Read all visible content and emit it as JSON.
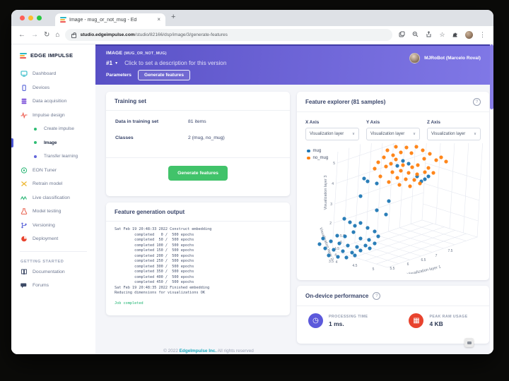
{
  "colors": {
    "header_purple_left": "#5850c5",
    "header_purple_right": "#8078e6",
    "green_button": "#41c36a",
    "plot_blue": "#1f77b4",
    "plot_orange": "#ff7f0e",
    "metric_purple": "#5c59db",
    "metric_red": "#e8432e",
    "footer_link_teal": "#17a8bc"
  },
  "icons": {
    "back": "←",
    "forward": "→",
    "reload": "↻",
    "home": "⌂",
    "star": "☆",
    "kebab": "⋮",
    "caret_down": "▾",
    "chevron_down": "∨",
    "clock": "◷",
    "ram": "▦",
    "close": "×",
    "plus": "+"
  },
  "browser": {
    "tab_title": "Image - mug_or_not_mug - Ed",
    "url_domain": "studio.edgeimpulse.com",
    "url_path": "/studio/82166/dsp/image/3/generate-features"
  },
  "sidebar": {
    "logo_text": "EDGE IMPULSE",
    "items": [
      "Dashboard",
      "Devices",
      "Data acquisition",
      "Impulse design",
      "Create impulse",
      "Image",
      "Transfer learning",
      "EON Tuner",
      "Retrain model",
      "Live classification",
      "Model testing",
      "Versioning",
      "Deployment"
    ],
    "section": "GETTING STARTED",
    "help_items": [
      "Documentation",
      "Forums"
    ]
  },
  "header": {
    "project_type": "IMAGE",
    "project_name": "(MUG_OR_NOT_MUG)",
    "version": "#1",
    "description_placeholder": "Click to set a description for this version",
    "tabs": [
      "Parameters",
      "Generate features"
    ],
    "user_name": "MJRoBot (Marcelo Roval)"
  },
  "training_set": {
    "title": "Training set",
    "rows": [
      {
        "label": "Data in training set",
        "value": "81 items"
      },
      {
        "label": "Classes",
        "value": "2 (mug, no_mug)"
      }
    ],
    "button": "Generate features"
  },
  "feature_output": {
    "title": "Feature generation output",
    "lines": [
      "Sat Feb 19 20:48:33 2022 Construct embedding",
      "         completed   0 /  500 epochs",
      "         completed  50 /  500 epochs",
      "         completed 100 /  500 epochs",
      "         completed 150 /  500 epochs",
      "         completed 200 /  500 epochs",
      "         completed 250 /  500 epochs",
      "         completed 300 /  500 epochs",
      "         completed 350 /  500 epochs",
      "         completed 400 /  500 epochs",
      "         completed 450 /  500 epochs",
      "Sat Feb 19 20:48:35 2022 Finished embedding",
      "Reducing dimensions for visualizations OK",
      ""
    ],
    "job_line": "Job completed"
  },
  "feature_explorer": {
    "title": "Feature explorer (81 samples)",
    "axes": [
      {
        "label": "X Axis",
        "value": "Visualization layer"
      },
      {
        "label": "Y Axis",
        "value": "Visualization layer"
      },
      {
        "label": "Z Axis",
        "value": "Visualization layer"
      }
    ]
  },
  "chart_data": {
    "type": "scatter",
    "subtype": "scatter3d",
    "title": "Feature explorer (81 samples)",
    "xlabel": "Visualization layer 1",
    "ylabel": "Visualization layer 2",
    "zlabel": "Visualization layer 3",
    "x_ticks": [
      "4",
      "4.5",
      "5",
      "5.5",
      "6",
      "6.5",
      "7",
      "7.5"
    ],
    "y_ticks": [
      "5.5",
      "5",
      "4.5",
      "4",
      "3.5"
    ],
    "z_ticks": [
      "5",
      "4",
      "3",
      "2"
    ],
    "legend": [
      "mug",
      "no_mug"
    ],
    "grid": true,
    "note": "point coords are plot-pixel positions in a 250x185 viewBox",
    "series": [
      {
        "name": "mug",
        "color": "#1f77b4",
        "points": [
          [
            122,
            32
          ],
          [
            138,
            29
          ],
          [
            150,
            47
          ],
          [
            156,
            54
          ],
          [
            161,
            51
          ],
          [
            166,
            47
          ],
          [
            130,
            25
          ],
          [
            75,
            50
          ],
          [
            80,
            54
          ],
          [
            93,
            57
          ],
          [
            70,
            75
          ],
          [
            110,
            82
          ],
          [
            93,
            95
          ],
          [
            106,
            101
          ],
          [
            47,
            107
          ],
          [
            55,
            112
          ],
          [
            62,
            117
          ],
          [
            70,
            113
          ],
          [
            80,
            120
          ],
          [
            90,
            125
          ],
          [
            60,
            126
          ],
          [
            48,
            132
          ],
          [
            37,
            131
          ],
          [
            70,
            135
          ],
          [
            82,
            137
          ],
          [
            95,
            132
          ],
          [
            28,
            139
          ],
          [
            40,
            142
          ],
          [
            52,
            145
          ],
          [
            65,
            147
          ],
          [
            77,
            145
          ],
          [
            90,
            142
          ],
          [
            20,
            149
          ],
          [
            32,
            151
          ],
          [
            45,
            153
          ],
          [
            58,
            155
          ],
          [
            70,
            152
          ],
          [
            83,
            149
          ],
          [
            25,
            159
          ],
          [
            38,
            161
          ],
          [
            50,
            162
          ],
          [
            62,
            159
          ],
          [
            12,
            143
          ],
          [
            17,
            135
          ]
        ]
      },
      {
        "name": "no_mug",
        "color": "#ff7f0e",
        "points": [
          [
            120,
            5
          ],
          [
            135,
            6
          ],
          [
            149,
            5
          ],
          [
            127,
            13
          ],
          [
            116,
            17
          ],
          [
            142,
            14
          ],
          [
            160,
            22
          ],
          [
            177,
            24
          ],
          [
            184,
            20
          ],
          [
            191,
            26
          ],
          [
            120,
            23
          ],
          [
            113,
            29
          ],
          [
            130,
            31
          ],
          [
            143,
            34
          ],
          [
            151,
            31
          ],
          [
            127,
            39
          ],
          [
            138,
            42
          ],
          [
            115,
            41
          ],
          [
            150,
            44
          ],
          [
            161,
            41
          ],
          [
            122,
            49
          ],
          [
            134,
            51
          ],
          [
            146,
            52
          ],
          [
            90,
            36
          ],
          [
            106,
            33
          ],
          [
            98,
            47
          ],
          [
            110,
            55
          ],
          [
            125,
            59
          ],
          [
            140,
            61
          ],
          [
            154,
            57
          ],
          [
            166,
            35
          ],
          [
            173,
            42
          ],
          [
            103,
            20
          ],
          [
            95,
            27
          ],
          [
            108,
            10
          ],
          [
            158,
            10
          ],
          [
            168,
            15
          ]
        ]
      }
    ]
  },
  "performance": {
    "title": "On-device performance",
    "metrics": [
      {
        "label": "PROCESSING TIME",
        "value": "1 ms."
      },
      {
        "label": "PEAK RAM USAGE",
        "value": "4 KB"
      }
    ]
  },
  "page_footer": {
    "copyright": "© 2022",
    "link": "EdgeImpulse Inc.",
    "rest": "All rights reserved"
  }
}
